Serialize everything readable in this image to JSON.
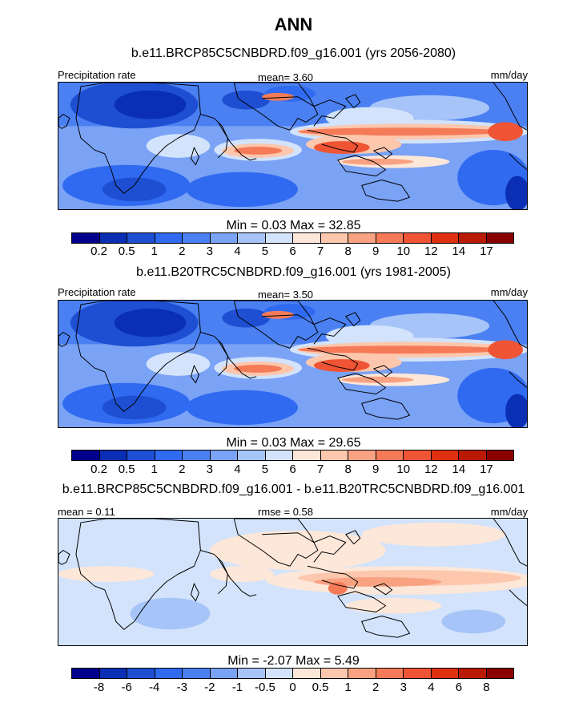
{
  "page": {
    "title": "ANN"
  },
  "panels": [
    {
      "title": "b.e11.BRCP85C5CNBDRD.f09_g16.001 (yrs 2056-2080)",
      "left_label": "Precipitation rate",
      "mid_label": "mean=   3.60",
      "right_label": "mm/day",
      "minmax": "Min =   0.03 Max =  32.85",
      "colorbar": {
        "colors": [
          "#00008c",
          "#0a2fb4",
          "#1e4fd2",
          "#2f6af0",
          "#4a80f2",
          "#7aa2f5",
          "#a6c4f8",
          "#d2e3fb",
          "#fde7d9",
          "#fcc7ad",
          "#f8a282",
          "#f57b58",
          "#ef5434",
          "#df3010",
          "#b81a05",
          "#8a0000"
        ],
        "labels": [
          "0.2",
          "0.5",
          "1",
          "2",
          "3",
          "4",
          "5",
          "6",
          "7",
          "8",
          "9",
          "10",
          "12",
          "14",
          "17"
        ]
      },
      "variant": "full"
    },
    {
      "title": "b.e11.B20TRC5CNBDRD.f09_g16.001 (yrs 1981-2005)",
      "left_label": "Precipitation rate",
      "mid_label": "mean=   3.50",
      "right_label": "mm/day",
      "minmax": "Min =   0.03 Max =  29.65",
      "colorbar": {
        "colors": [
          "#00008c",
          "#0a2fb4",
          "#1e4fd2",
          "#2f6af0",
          "#4a80f2",
          "#7aa2f5",
          "#a6c4f8",
          "#d2e3fb",
          "#fde7d9",
          "#fcc7ad",
          "#f8a282",
          "#f57b58",
          "#ef5434",
          "#df3010",
          "#b81a05",
          "#8a0000"
        ],
        "labels": [
          "0.2",
          "0.5",
          "1",
          "2",
          "3",
          "4",
          "5",
          "6",
          "7",
          "8",
          "9",
          "10",
          "12",
          "14",
          "17"
        ]
      },
      "variant": "full"
    },
    {
      "title": "b.e11.BRCP85C5CNBDRD.f09_g16.001 - b.e11.B20TRC5CNBDRD.f09_g16.001",
      "left_label": "mean =   0.11",
      "mid_label": "rmse =   0.58",
      "right_label": "mm/day",
      "minmax": "Min =  -2.07 Max =   5.49",
      "colorbar": {
        "colors": [
          "#00008c",
          "#0a2fb4",
          "#1e4fd2",
          "#2f6af0",
          "#4a80f2",
          "#7aa2f5",
          "#a6c4f8",
          "#d2e3fb",
          "#fde7d9",
          "#fcc7ad",
          "#f8a282",
          "#f57b58",
          "#ef5434",
          "#df3010",
          "#b81a05",
          "#8a0000"
        ],
        "labels": [
          "-8",
          "-6",
          "-4",
          "-3",
          "-2",
          "-1",
          "-0.5",
          "0",
          "0.5",
          "1",
          "2",
          "3",
          "4",
          "6",
          "8"
        ]
      },
      "variant": "diff"
    }
  ]
}
